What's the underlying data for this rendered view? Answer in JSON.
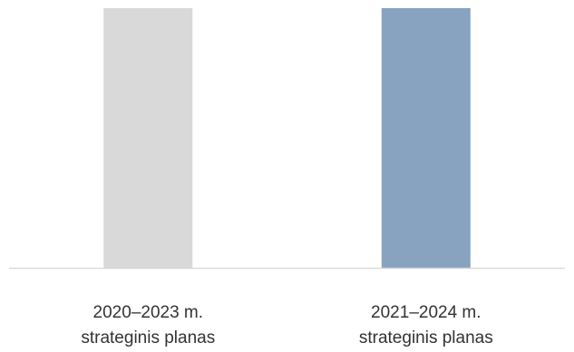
{
  "chart_data": {
    "type": "bar",
    "categories": [
      [
        "2020–2023 m.",
        "strateginis planas"
      ],
      [
        "2021–2024 m.",
        "strateginis planas"
      ]
    ],
    "values": [
      100,
      100
    ],
    "colors": [
      "#d9d9d9",
      "#87a3c0"
    ],
    "axis_color": "#d9d9d9",
    "title": "",
    "xlabel": "",
    "ylabel": "",
    "grid": false,
    "legend": "none"
  }
}
